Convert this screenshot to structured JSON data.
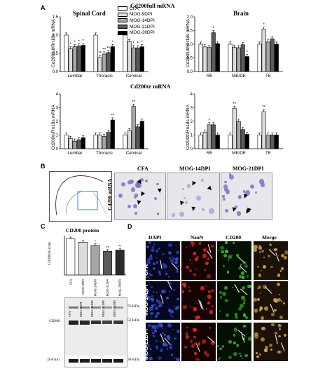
{
  "panels": {
    "a": "A",
    "b": "B",
    "c": "C",
    "d": "D"
  },
  "panel_a": {
    "full_title": "Cd200full mRNA",
    "tr_title": "Cd200tr mRNA",
    "spinal_title": "Spinal Cord",
    "brain_title": "Brain",
    "ylabel_full": "Cd200full/Rn18s mRNA",
    "ylabel_tr": "Cd200tr/Rn18s mRNA",
    "legend": [
      "CFA",
      "MOG-9DPI",
      "MOG-14DPI",
      "MOG-21DPI",
      "MOG-28DPI"
    ],
    "colors": [
      "#ffffff",
      "#dcdcdc",
      "#a6a6a6",
      "#5b5b5b",
      "#000000"
    ]
  },
  "chart_data": [
    {
      "id": "full-spinal",
      "type": "bar",
      "title": "Spinal Cord",
      "ylabel": "Cd200full/Rn18s mRNA",
      "categories": [
        "Lumbar",
        "Thoracic",
        "Cervical"
      ],
      "ylim": [
        0,
        1.5
      ],
      "yticks": [
        "0.0",
        "0.5",
        "1.0",
        "1.5"
      ],
      "series": [
        {
          "name": "CFA",
          "values": [
            1.0,
            1.0,
            1.0
          ]
        },
        {
          "name": "MOG-9DPI",
          "values": [
            0.62,
            0.38,
            0.82
          ]
        },
        {
          "name": "MOG-14DPI",
          "values": [
            0.68,
            0.48,
            0.65
          ]
        },
        {
          "name": "MOG-21DPI",
          "values": [
            0.7,
            0.52,
            0.65
          ]
        },
        {
          "name": "MOG-28DPI",
          "values": [
            0.72,
            0.68,
            0.68
          ]
        }
      ],
      "sig": [
        [
          "*",
          "*",
          "*",
          "*"
        ],
        [
          "**",
          "**",
          "**",
          "*"
        ],
        [
          "",
          "*",
          "*",
          "*"
        ]
      ]
    },
    {
      "id": "full-brain",
      "type": "bar",
      "title": "Brain",
      "ylabel": "Cd200full/Rn18s mRNA",
      "categories": [
        "RE",
        "ME/DE",
        "TE"
      ],
      "ylim": [
        0,
        2.0
      ],
      "yticks": [
        "0.0",
        "0.5",
        "1.0",
        "1.5",
        "2.0"
      ],
      "series": [
        {
          "name": "CFA",
          "values": [
            1.0,
            1.0,
            1.0
          ]
        },
        {
          "name": "MOG-9DPI",
          "values": [
            0.9,
            0.88,
            1.55
          ]
        },
        {
          "name": "MOG-14DPI",
          "values": [
            0.88,
            0.87,
            1.08
          ]
        },
        {
          "name": "MOG-21DPI",
          "values": [
            1.42,
            0.98,
            1.2
          ]
        },
        {
          "name": "MOG-28DPI",
          "values": [
            1.02,
            0.55,
            1.0
          ]
        }
      ],
      "sig": [
        [
          "",
          "",
          "*",
          ""
        ],
        [
          "",
          "",
          "",
          "*"
        ],
        [
          "*",
          "",
          "",
          ""
        ]
      ]
    },
    {
      "id": "tr-spinal",
      "type": "bar",
      "title": "",
      "ylabel": "Cd200tr/Rn18s mRNA",
      "categories": [
        "Lumbar",
        "Thoracic",
        "Cervical"
      ],
      "ylim": [
        0,
        4
      ],
      "yticks": [
        "0",
        "1",
        "2",
        "3",
        "4"
      ],
      "series": [
        {
          "name": "CFA",
          "values": [
            1.0,
            1.0,
            1.0
          ]
        },
        {
          "name": "MOG-9DPI",
          "values": [
            0.75,
            1.0,
            1.3
          ]
        },
        {
          "name": "MOG-14DPI",
          "values": [
            0.55,
            0.9,
            3.1
          ]
        },
        {
          "name": "MOG-21DPI",
          "values": [
            0.65,
            1.2,
            1.6
          ]
        },
        {
          "name": "MOG-28DPI",
          "values": [
            0.8,
            2.1,
            2.0
          ]
        }
      ],
      "sig": [
        [
          "",
          "",
          "",
          ""
        ],
        [
          "",
          "",
          "",
          "**"
        ],
        [
          "",
          "**",
          "",
          ""
        ]
      ]
    },
    {
      "id": "tr-brain",
      "type": "bar",
      "title": "",
      "ylabel": "Cd200tr/Rn18s mRNA",
      "categories": [
        "RE",
        "ME/DE",
        "TE"
      ],
      "ylim": [
        0,
        4
      ],
      "yticks": [
        "0",
        "1",
        "2",
        "3",
        "4"
      ],
      "series": [
        {
          "name": "CFA",
          "values": [
            1.0,
            1.0,
            1.0
          ]
        },
        {
          "name": "MOG-9DPI",
          "values": [
            1.2,
            2.95,
            2.7
          ]
        },
        {
          "name": "MOG-14DPI",
          "values": [
            1.75,
            2.0,
            1.0
          ]
        },
        {
          "name": "MOG-21DPI",
          "values": [
            1.75,
            1.4,
            1.0
          ]
        },
        {
          "name": "MOG-28DPI",
          "values": [
            1.0,
            1.05,
            1.0
          ]
        }
      ],
      "sig": [
        [
          "",
          "*",
          "",
          ""
        ],
        [
          "**",
          "",
          "",
          ""
        ],
        [
          "**",
          "",
          "",
          ""
        ]
      ]
    },
    {
      "id": "cd200-protein",
      "type": "bar",
      "title": "CD200 protein",
      "ylabel": "CD200/β-actin",
      "categories": [
        "CFA",
        "MOG-9DPI",
        "MOG-14DPI",
        "MOG-21DPI",
        "MOG-28DPI"
      ],
      "ylim": [
        0,
        1.5
      ],
      "values": [
        1.38,
        1.25,
        1.12,
        0.9,
        0.95
      ],
      "sig": [
        "",
        "",
        "*",
        "**",
        "**"
      ]
    }
  ],
  "panel_b": {
    "ylabel": "Cd200 mRNA",
    "titles": [
      "CFA",
      "MOG-14DPI",
      "MOG-21DPI"
    ]
  },
  "panel_c": {
    "title": "CD200 protein",
    "blot_label": "CD200",
    "actin_label": "β-Actin",
    "kda_76": "76 KDa",
    "kda_52": "52 KDa",
    "kda_38": "38 KDa",
    "lanes": [
      "CFA",
      "MOG-9DPI",
      "MOG-14DPI",
      "MOG-21DPI",
      "MOG-28DPI"
    ]
  },
  "panel_d": {
    "columns": [
      "DAPI",
      "NeuN",
      "CD200",
      "Merge"
    ],
    "rows": [
      "CFA",
      "MOG-14DPI",
      "MOG-21DPI"
    ],
    "channel_colors": [
      "#2f4fd8",
      "#e0261a",
      "#3cbf2a",
      "#d9a43a"
    ]
  }
}
